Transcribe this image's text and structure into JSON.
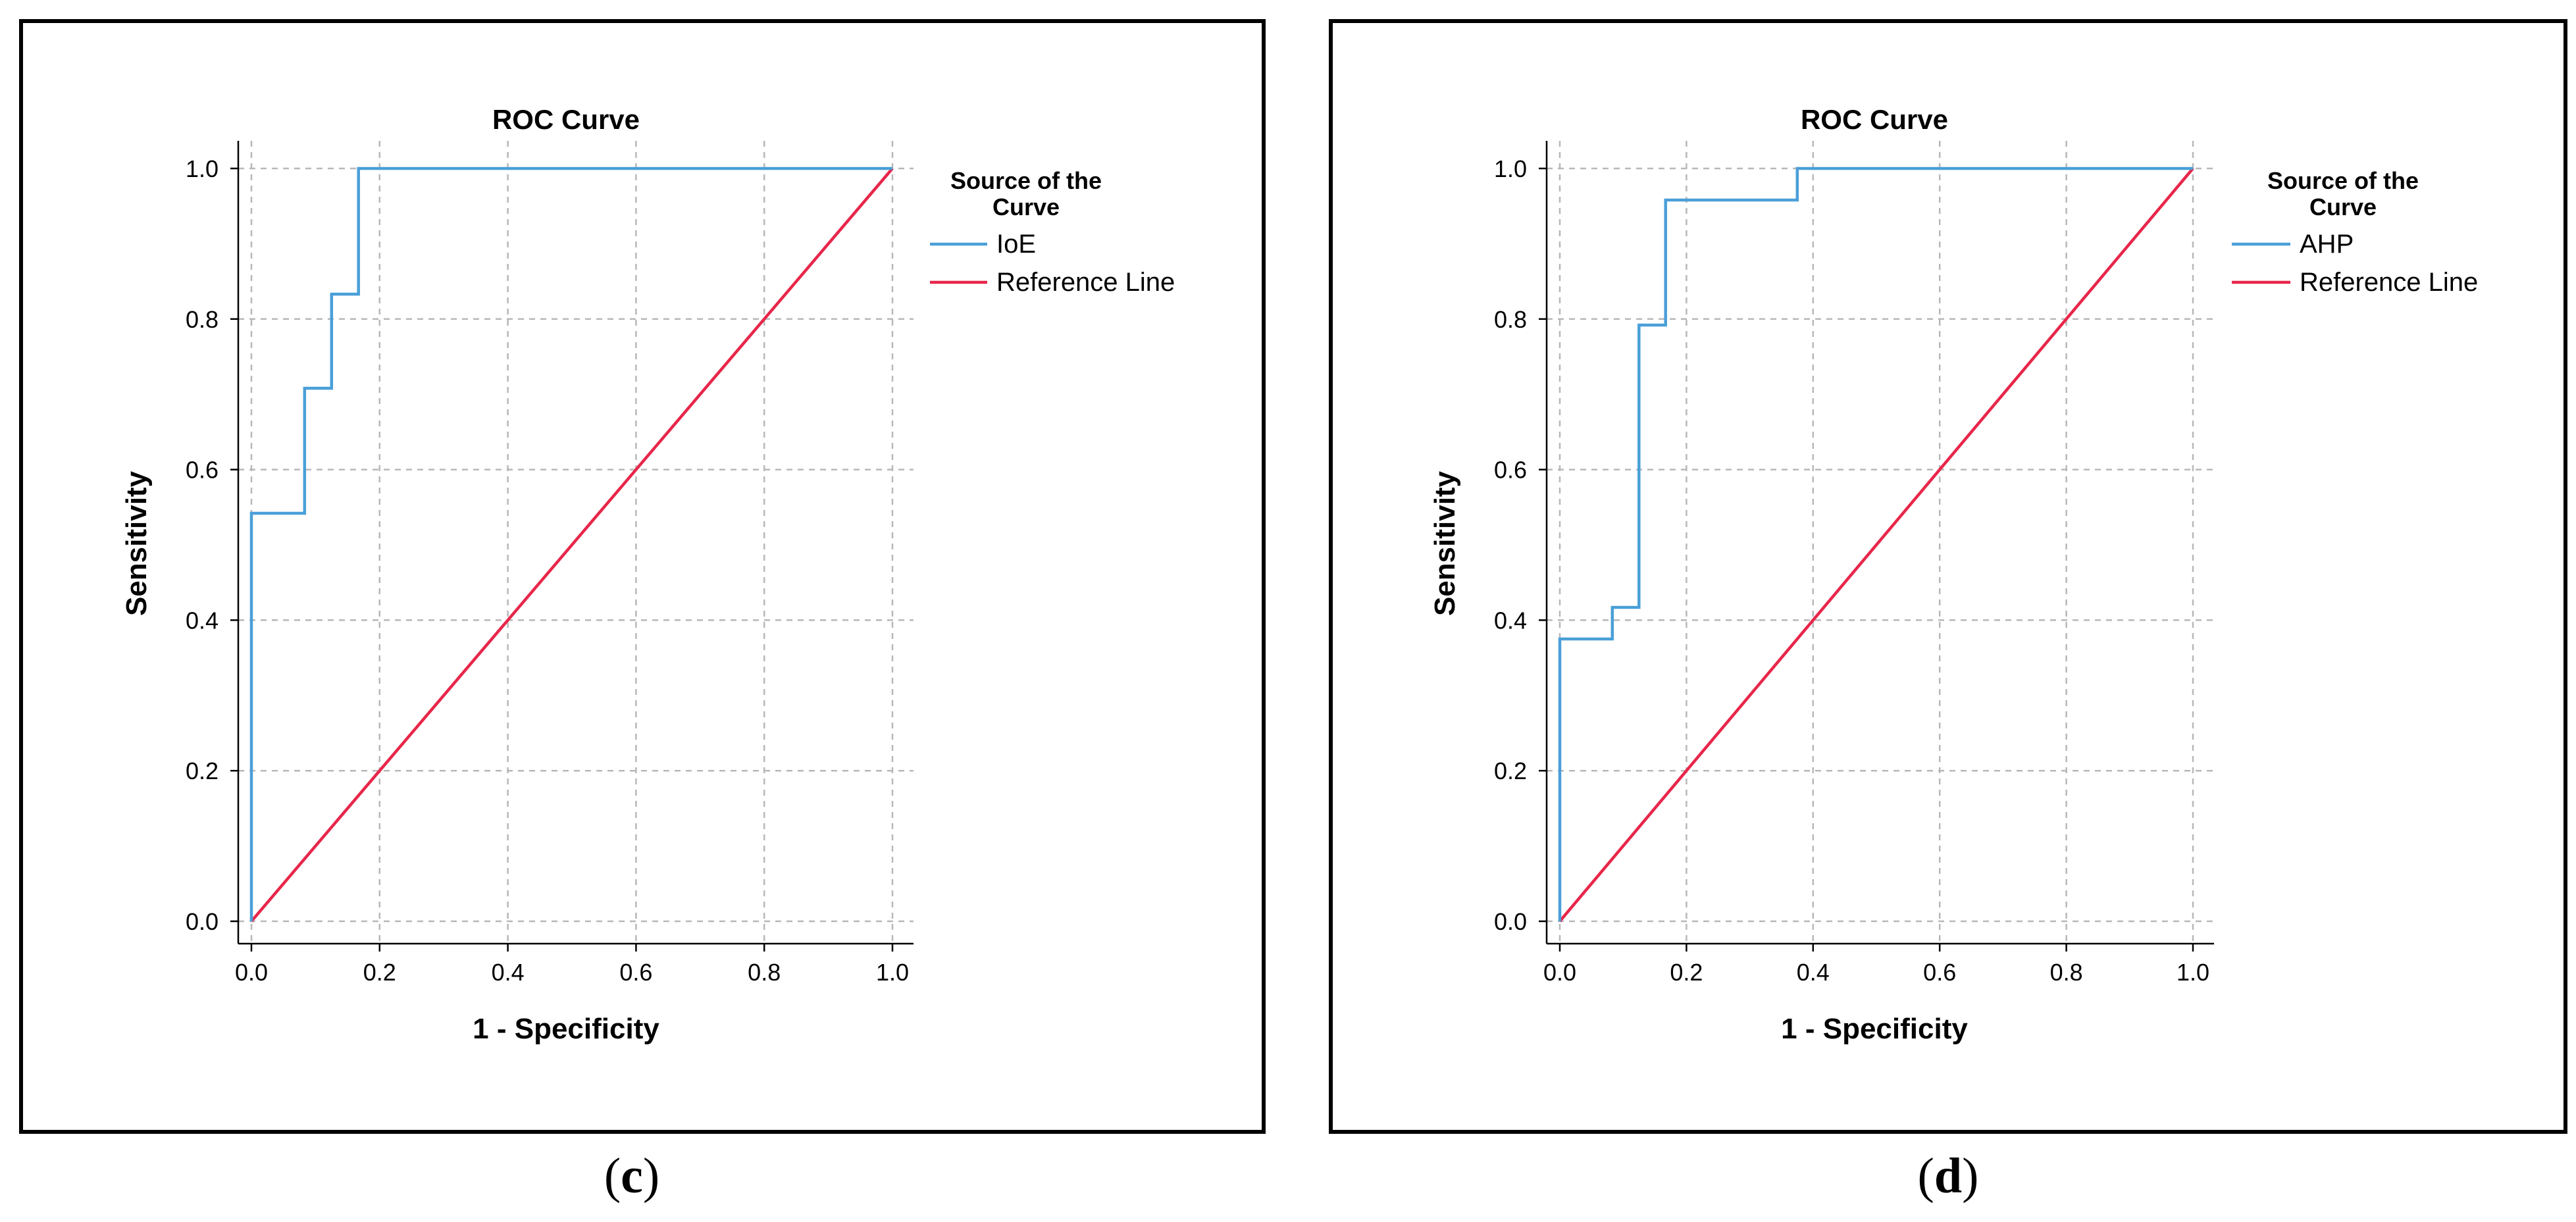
{
  "chart_data": [
    {
      "type": "line",
      "panel_label": "c",
      "title": "ROC Curve",
      "xlabel": "1 - Specificity",
      "ylabel": "Sensitivity",
      "xlim": [
        0,
        1
      ],
      "ylim": [
        0,
        1
      ],
      "x_ticks": [
        "0.0",
        "0.2",
        "0.4",
        "0.6",
        "0.8",
        "1.0"
      ],
      "y_ticks": [
        "0.0",
        "0.2",
        "0.4",
        "0.6",
        "0.8",
        "1.0"
      ],
      "grid": true,
      "legend_title": "Source of the Curve",
      "legend_position": "right",
      "series": [
        {
          "name": "IoE",
          "color": "#4a9fd8",
          "x": [
            0,
            0,
            0.083,
            0.083,
            0.125,
            0.125,
            0.167,
            0.167,
            1
          ],
          "y": [
            0,
            0.542,
            0.542,
            0.708,
            0.708,
            0.833,
            0.833,
            1.0,
            1.0
          ]
        },
        {
          "name": "Reference Line",
          "color": "#e8264a",
          "x": [
            0,
            1
          ],
          "y": [
            0,
            1
          ]
        }
      ]
    },
    {
      "type": "line",
      "panel_label": "d",
      "title": "ROC Curve",
      "xlabel": "1 - Specificity",
      "ylabel": "Sensitivity",
      "xlim": [
        0,
        1
      ],
      "ylim": [
        0,
        1
      ],
      "x_ticks": [
        "0.0",
        "0.2",
        "0.4",
        "0.6",
        "0.8",
        "1.0"
      ],
      "y_ticks": [
        "0.0",
        "0.2",
        "0.4",
        "0.6",
        "0.8",
        "1.0"
      ],
      "grid": true,
      "legend_title": "Source of the Curve",
      "legend_position": "right",
      "series": [
        {
          "name": "AHP",
          "color": "#4a9fd8",
          "x": [
            0,
            0,
            0.083,
            0.083,
            0.125,
            0.125,
            0.167,
            0.167,
            0.375,
            0.375,
            1
          ],
          "y": [
            0,
            0.375,
            0.375,
            0.417,
            0.417,
            0.792,
            0.792,
            0.958,
            0.958,
            1.0,
            1.0
          ]
        },
        {
          "name": "Reference Line",
          "color": "#e8264a",
          "x": [
            0,
            1
          ],
          "y": [
            0,
            1
          ]
        }
      ]
    }
  ]
}
